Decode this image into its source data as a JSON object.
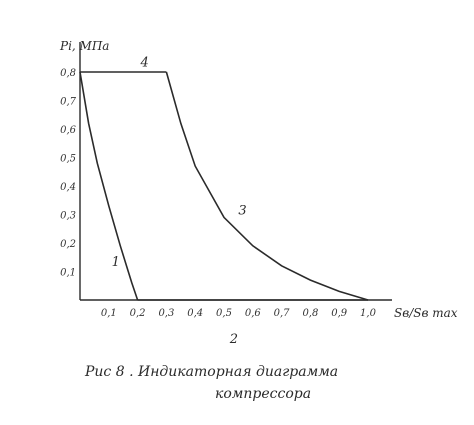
{
  "chart_data": {
    "type": "line",
    "ylabel": "Pi, МПа",
    "xlabel": "Sв/Sв max",
    "xlim": [
      0,
      1.0
    ],
    "ylim": [
      0,
      0.8
    ],
    "x_ticks": [
      "0,1",
      "0,2",
      "0,3",
      "0,4",
      "0,5",
      "0,6",
      "0,7",
      "0,8",
      "0,9",
      "1,0"
    ],
    "y_ticks": [
      "0,1",
      "0,2",
      "0,3",
      "0,4",
      "0,5",
      "0,6",
      "0,7",
      "0,8"
    ],
    "series": [
      {
        "name": "1",
        "x": [
          0.0,
          0.03,
          0.06,
          0.1,
          0.14,
          0.18,
          0.2
        ],
        "y": [
          0.8,
          0.62,
          0.48,
          0.33,
          0.19,
          0.06,
          0.0
        ]
      },
      {
        "name": "2",
        "x": [
          0.2,
          1.0
        ],
        "y": [
          0.0,
          0.0
        ]
      },
      {
        "name": "3",
        "x": [
          0.3,
          0.35,
          0.4,
          0.5,
          0.6,
          0.7,
          0.8,
          0.9,
          1.0
        ],
        "y": [
          0.8,
          0.62,
          0.47,
          0.29,
          0.19,
          0.12,
          0.07,
          0.03,
          0.0
        ]
      },
      {
        "name": "4",
        "x": [
          0.0,
          0.3
        ],
        "y": [
          0.8,
          0.8
        ]
      }
    ]
  },
  "caption": {
    "line1": "Рис 8 . Индикаторная диаграмма",
    "line2": "компрессора"
  }
}
